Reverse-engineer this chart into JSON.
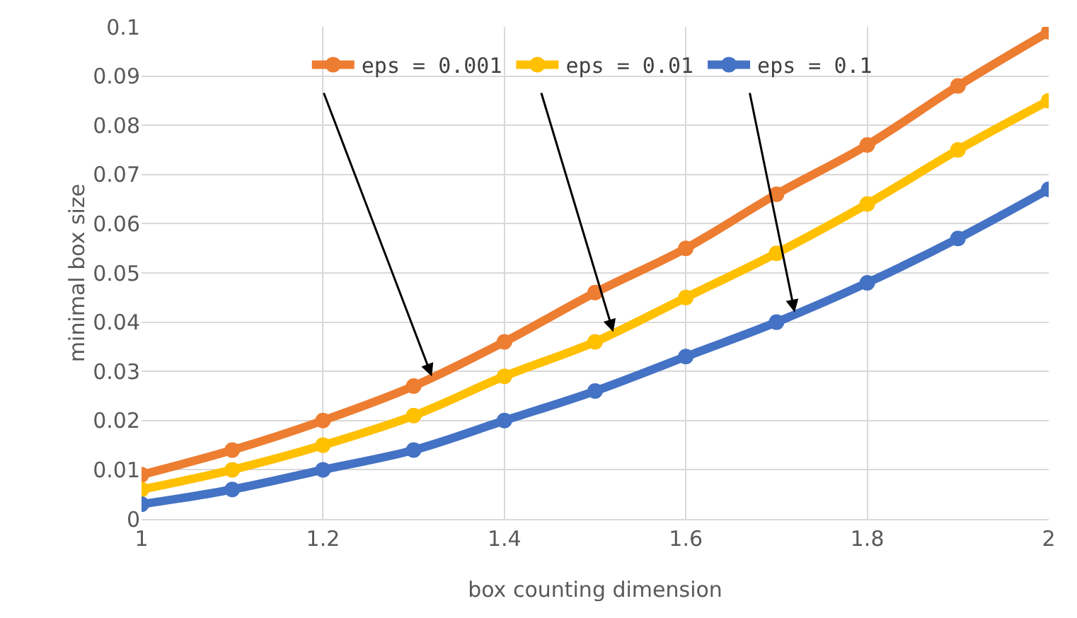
{
  "chart_data": {
    "type": "line",
    "xlabel": "box counting dimension",
    "ylabel": "minimal box size",
    "x": [
      1,
      1.1,
      1.2,
      1.3,
      1.4,
      1.5,
      1.6,
      1.7,
      1.8,
      1.9,
      2
    ],
    "series": [
      {
        "name": "eps = 0.001",
        "color": "#ed7d31",
        "values": [
          0.009,
          0.014,
          0.02,
          0.027,
          0.036,
          0.046,
          0.055,
          0.066,
          0.076,
          0.088,
          0.099
        ]
      },
      {
        "name": "eps = 0.01",
        "color": "#ffc000",
        "values": [
          0.006,
          0.01,
          0.015,
          0.021,
          0.029,
          0.036,
          0.045,
          0.054,
          0.064,
          0.075,
          0.085
        ]
      },
      {
        "name": "eps = 0.1",
        "color": "#4472c4",
        "values": [
          0.003,
          0.006,
          0.01,
          0.014,
          0.02,
          0.026,
          0.033,
          0.04,
          0.048,
          0.057,
          0.067
        ]
      }
    ],
    "xlim": [
      1,
      2
    ],
    "xticks": [
      1,
      1.2,
      1.4,
      1.6,
      1.8,
      2
    ],
    "ylim": [
      0,
      0.1
    ],
    "yticks": [
      0,
      0.01,
      0.02,
      0.03,
      0.04,
      0.05,
      0.06,
      0.07,
      0.08,
      0.09,
      0.1
    ],
    "grid": true,
    "legend": "top",
    "marker": "circle",
    "line_style": "solid"
  }
}
